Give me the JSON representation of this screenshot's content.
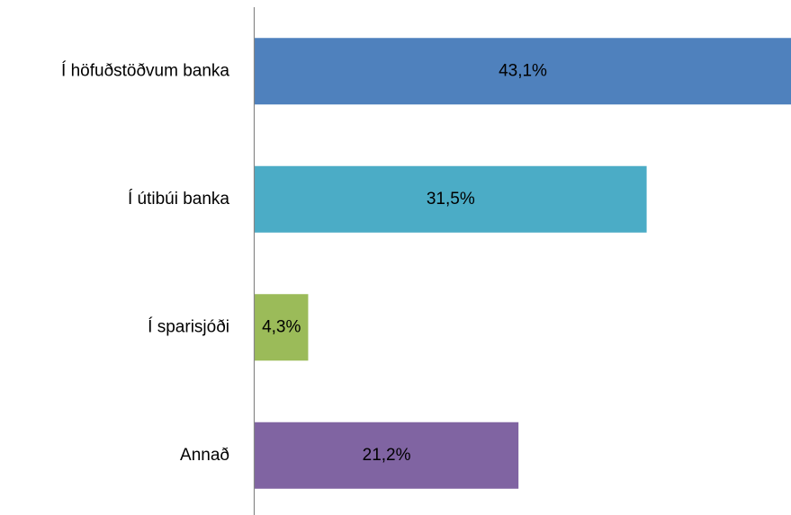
{
  "chart_data": {
    "type": "bar",
    "orientation": "horizontal",
    "categories": [
      "Í höfuðstöðvum banka",
      "Í útibúi banka",
      "Í sparisjóði",
      "Annað"
    ],
    "values": [
      43.1,
      31.5,
      4.3,
      21.2
    ],
    "value_labels": [
      "43,1%",
      "31,5%",
      "4,3%",
      "21,2%"
    ],
    "colors": [
      "#4f81bd",
      "#4bacc6",
      "#9bbb59",
      "#8064a2"
    ]
  }
}
